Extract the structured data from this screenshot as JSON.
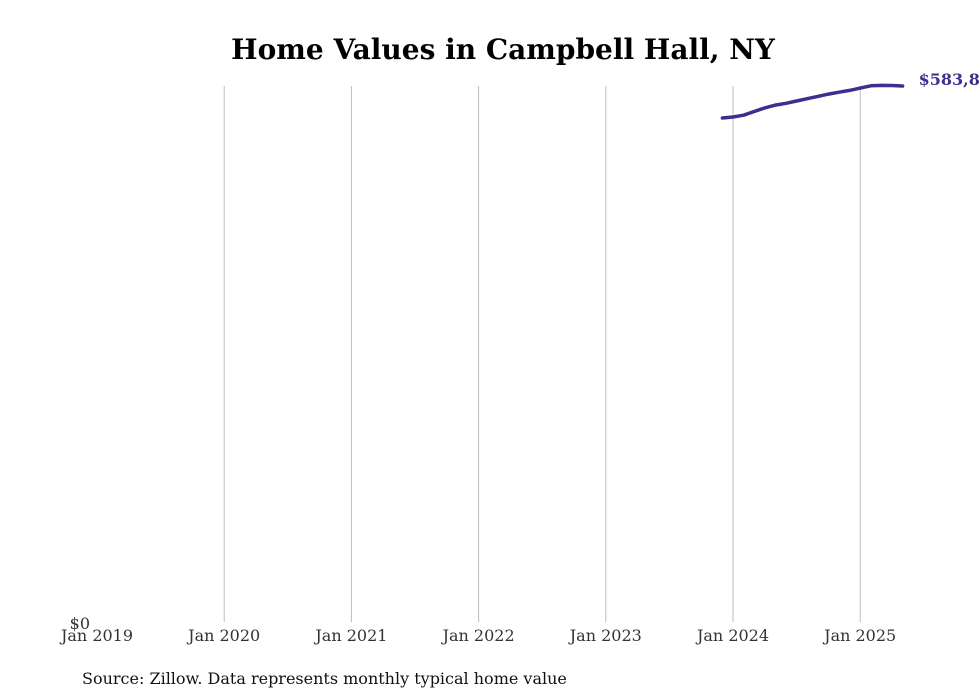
{
  "chart_data": {
    "type": "line",
    "title": "Home Values in Campbell Hall, NY",
    "xlabel": "",
    "ylabel": "",
    "x_ticks": [
      "Jan 2019",
      "Jan 2020",
      "Jan 2021",
      "Jan 2022",
      "Jan 2023",
      "Jan 2024",
      "Jan 2025"
    ],
    "y_ticks": [
      "$0"
    ],
    "xlim": [
      "2019-01",
      "2025-06"
    ],
    "ylim": [
      0,
      583800
    ],
    "grid": "vertical",
    "end_label": "$583,8",
    "series": [
      {
        "color": "#3b2f8f",
        "x": [
          "2023-12",
          "2024-01",
          "2024-02",
          "2024-03",
          "2024-04",
          "2024-05",
          "2024-06",
          "2024-07",
          "2024-08",
          "2024-09",
          "2024-10",
          "2024-11",
          "2024-12",
          "2025-01",
          "2025-02",
          "2025-03",
          "2025-04",
          "2025-05"
        ],
        "values": [
          549000,
          550000,
          552000,
          556000,
          560000,
          563000,
          565000,
          567500,
          570000,
          572500,
          575000,
          577000,
          579000,
          581500,
          584000,
          584500,
          584300,
          583800
        ]
      }
    ]
  },
  "source": "Source: Zillow. Data represents monthly typical home value"
}
